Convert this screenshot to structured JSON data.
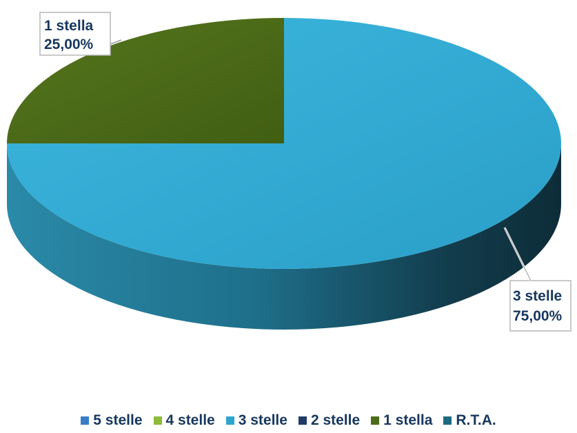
{
  "chart_data": {
    "type": "pie",
    "style": "3d",
    "categories": [
      "5 stelle",
      "4 stelle",
      "3 stelle",
      "2 stelle",
      "1 stella",
      "R.T.A."
    ],
    "values": [
      0,
      0,
      75,
      0,
      25,
      0
    ],
    "colors": [
      "#3a7dc6",
      "#8dbb3a",
      "#2ea6cf",
      "#1f3b66",
      "#4d6b19",
      "#1c6a80"
    ],
    "data_labels": [
      {
        "category": "1 stella",
        "value": "25,00%"
      },
      {
        "category": "3 stelle",
        "value": "75,00%"
      }
    ],
    "legend_position": "bottom"
  }
}
